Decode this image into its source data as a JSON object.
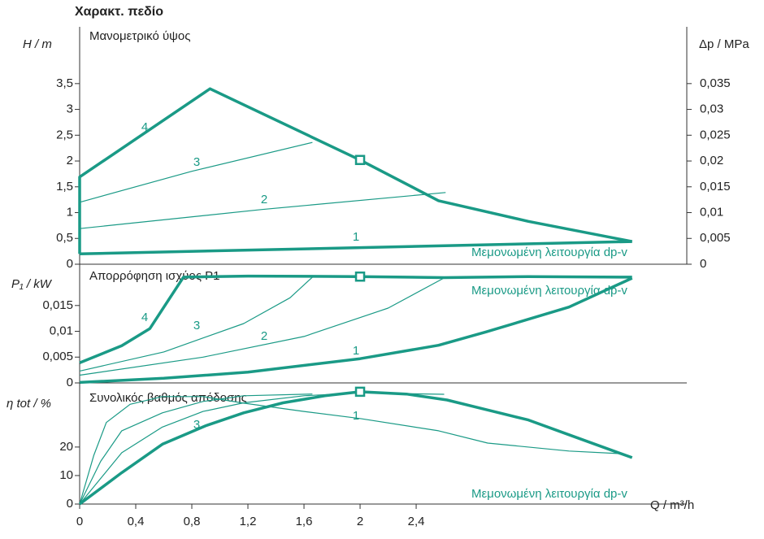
{
  "title": "Χαρακτ. πεδίο",
  "x_label": "Q / m³/h",
  "chart_data": [
    {
      "type": "line",
      "panel_title": "Μανομετρικό ύψος",
      "y_label": "H / m",
      "y2_label": "Δp / MPa",
      "annotation": "Μεμονωμένη λειτουργία dp-v",
      "xlim": [
        0,
        4.33
      ],
      "ylim": [
        0,
        4.6
      ],
      "yticks": [
        0,
        {
          "value": 0.5,
          "label": "0,5"
        },
        1,
        {
          "value": 1.5,
          "label": "1,5"
        },
        2,
        {
          "value": 2.5,
          "label": "2,5"
        },
        3,
        {
          "value": 3.5,
          "label": "3,5"
        }
      ],
      "y2lim": [
        0,
        0.046
      ],
      "y2ticks": [
        0,
        {
          "value": 0.005,
          "label": "0,005"
        },
        {
          "value": 0.01,
          "label": "0,01"
        },
        {
          "value": 0.015,
          "label": "0,015"
        },
        {
          "value": 0.02,
          "label": "0,02"
        },
        {
          "value": 0.025,
          "label": "0,025"
        },
        {
          "value": 0.03,
          "label": "0,03"
        },
        {
          "value": 0.035,
          "label": "0,035"
        }
      ],
      "color": "#1a9a86",
      "series": [
        {
          "name": "4",
          "x": [
            0,
            0,
            0.93,
            2.0,
            2.56,
            3.2,
            3.94
          ],
          "values": [
            0.2,
            1.69,
            3.4,
            2.02,
            1.23,
            0.83,
            0.44
          ]
        },
        {
          "name": "3",
          "x": [
            0,
            0.8,
            1.66
          ],
          "values": [
            1.2,
            1.8,
            2.36
          ]
        },
        {
          "name": "2",
          "x": [
            0,
            1.3,
            2.61
          ],
          "values": [
            0.69,
            1.06,
            1.39
          ]
        },
        {
          "name": "1",
          "x": [
            0,
            3.94
          ],
          "values": [
            0.2,
            0.44
          ]
        }
      ],
      "marker": {
        "x": 2.0,
        "y": 2.02
      }
    },
    {
      "type": "line",
      "panel_title": "Απορρόφηση ισχύος P1",
      "y_label": "P₁ / kW",
      "annotation": "Μεμονωμένη λειτουργία dp-v",
      "xlim": [
        0,
        4.33
      ],
      "ylim": [
        0,
        0.023
      ],
      "yticks": [
        0,
        {
          "value": 0.005,
          "label": "0,005"
        },
        {
          "value": 0.01,
          "label": "0,01"
        },
        {
          "value": 0.015,
          "label": "0,015"
        }
      ],
      "color": "#1a9a86",
      "series": [
        {
          "name": "4",
          "x": [
            0,
            0.3,
            0.5,
            0.74,
            1.2,
            2.0,
            2.6,
            3.2,
            3.94
          ],
          "values": [
            0.0039,
            0.0072,
            0.0105,
            0.0205,
            0.0207,
            0.0206,
            0.0204,
            0.0206,
            0.0205
          ]
        },
        {
          "name": "3",
          "x": [
            0,
            0.6,
            1.17,
            1.5,
            1.66
          ],
          "values": [
            0.0023,
            0.006,
            0.0115,
            0.0165,
            0.0205
          ]
        },
        {
          "name": "2",
          "x": [
            0,
            0.88,
            1.6,
            2.2,
            2.61
          ],
          "values": [
            0.0015,
            0.005,
            0.009,
            0.0145,
            0.0205
          ]
        },
        {
          "name": "1",
          "x": [
            0,
            0.6,
            1.2,
            2.0,
            2.56,
            2.9,
            3.49,
            3.94
          ],
          "values": [
            0.0001,
            0.0009,
            0.0021,
            0.0047,
            0.0073,
            0.0099,
            0.0147,
            0.0203
          ]
        }
      ],
      "marker": {
        "x": 2.0,
        "y": 0.0206
      }
    },
    {
      "type": "line",
      "panel_title": "Συνολικός βαθμός απόδοσης",
      "y_label": "η tot / %",
      "annotation": "Μεμονωμένη λειτουργία dp-v",
      "xlim": [
        0,
        4.33
      ],
      "ylim": [
        0,
        42.5
      ],
      "yticks": [
        0,
        10,
        20
      ],
      "xticks": [
        0,
        {
          "value": 0.4,
          "label": "0,4"
        },
        {
          "value": 0.8,
          "label": "0,8"
        },
        {
          "value": 1.2,
          "label": "1,2"
        },
        {
          "value": 1.6,
          "label": "1,6"
        },
        2,
        {
          "value": 2.4,
          "label": "2,4"
        }
      ],
      "color": "#1a9a86",
      "series": [
        {
          "x": [
            0,
            0.3,
            0.59,
            0.9,
            1.17,
            1.45,
            1.75,
            2.0,
            2.33,
            2.62,
            2.91,
            3.2,
            3.49,
            3.94
          ],
          "values": [
            0,
            11,
            21,
            27.5,
            32,
            35.5,
            38,
            39.4,
            38.6,
            36.5,
            33,
            29.5,
            24.3,
            16.3
          ]
        },
        {
          "name": "3",
          "x": [
            0,
            0.15,
            0.3,
            0.59,
            0.88,
            1.17,
            1.66
          ],
          "values": [
            0,
            15,
            25.7,
            32,
            36,
            38,
            38.6
          ]
        },
        {
          "x": [
            0,
            0.3,
            0.59,
            0.88,
            1.17,
            1.6,
            2.0,
            2.6
          ],
          "values": [
            0,
            18,
            27,
            32.5,
            35.5,
            38,
            39,
            38.5
          ]
        },
        {
          "name": "1",
          "x": [
            0,
            0.1,
            0.19,
            0.36,
            0.59,
            0.88,
            1.17,
            1.6,
            2.0,
            2.56,
            2.91,
            3.49,
            3.84,
            3.94
          ],
          "values": [
            0,
            17,
            28.6,
            35,
            37.7,
            37.7,
            35.4,
            32.5,
            30,
            25.7,
            21.4,
            18.6,
            17.7,
            16.6
          ]
        }
      ],
      "marker": {
        "x": 2.0,
        "y": 39.4
      }
    }
  ]
}
